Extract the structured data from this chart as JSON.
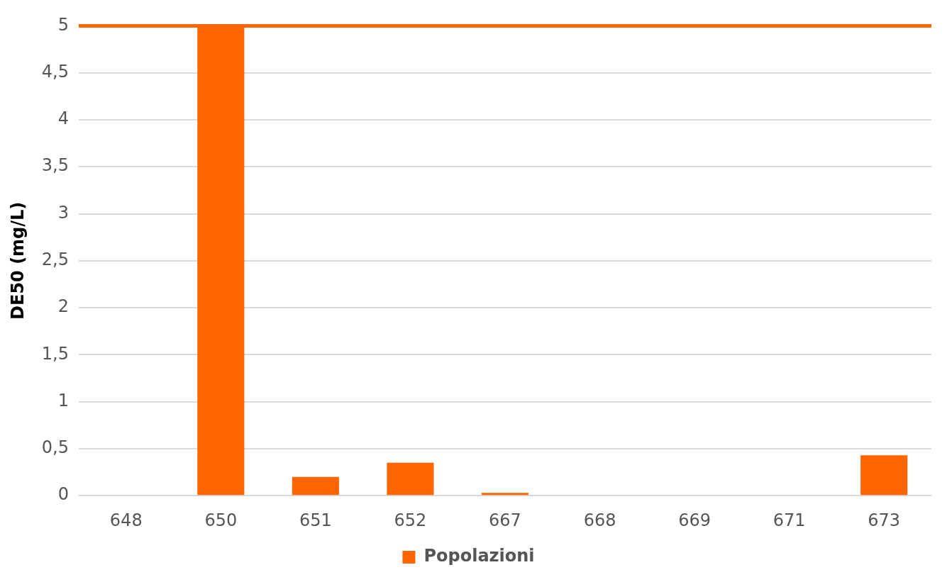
{
  "chart_data": {
    "type": "bar",
    "ylabel": "DE50 (mg/L)",
    "categories": [
      "648",
      "650",
      "651",
      "652",
      "667",
      "668",
      "669",
      "671",
      "673"
    ],
    "series": [
      {
        "name": "Popolazioni",
        "color": "#ff6600",
        "values": [
          0,
          5,
          0.2,
          0.35,
          0.03,
          0,
          0,
          0,
          0.43
        ]
      }
    ],
    "ylim": [
      0,
      5
    ],
    "yticks": [
      0,
      {
        "value": 0.5,
        "label": "0,5"
      },
      1,
      {
        "value": 1.5,
        "label": "1,5"
      },
      2,
      {
        "value": 2.5,
        "label": "2,5"
      },
      3,
      {
        "value": 3.5,
        "label": "3,5"
      },
      4,
      {
        "value": 4.5,
        "label": "4,5"
      },
      5
    ],
    "ref_lines": [
      {
        "axis": "y",
        "value": 5,
        "color": "#ff6600"
      }
    ],
    "grid": "y",
    "legend": "bottom"
  }
}
